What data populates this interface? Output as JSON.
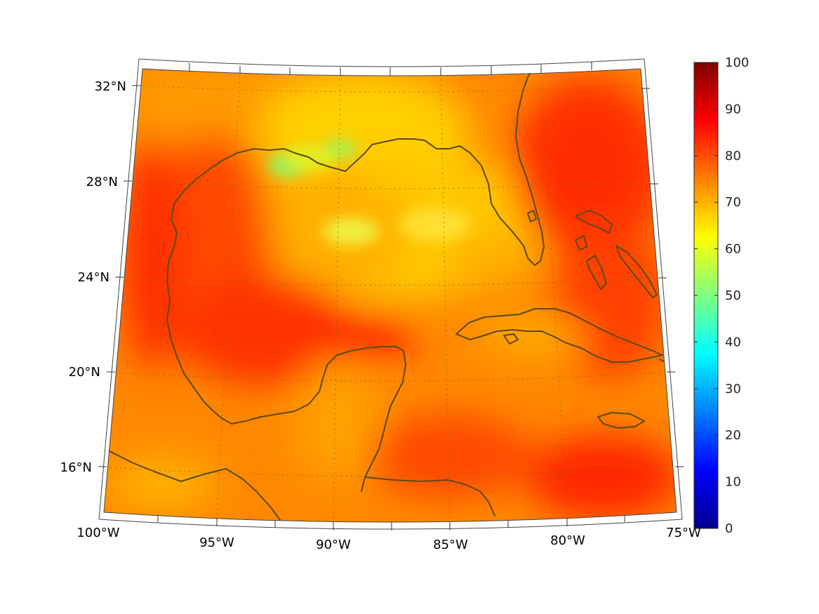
{
  "map": {
    "projection": "conic",
    "region": "Gulf of Mexico and Caribbean",
    "lon_range": [
      -100,
      -75
    ],
    "lat_range": [
      14,
      33
    ],
    "lon_ticks": [
      {
        "value": -100,
        "label": "100°W"
      },
      {
        "value": -95,
        "label": "95°W"
      },
      {
        "value": -90,
        "label": "90°W"
      },
      {
        "value": -85,
        "label": "85°W"
      },
      {
        "value": -80,
        "label": "80°W"
      },
      {
        "value": -75,
        "label": "75°W"
      }
    ],
    "lat_ticks": [
      {
        "value": 32,
        "label": "32°N"
      },
      {
        "value": 28,
        "label": "28°N"
      },
      {
        "value": 24,
        "label": "24°N"
      },
      {
        "value": 20,
        "label": "20°N"
      },
      {
        "value": 16,
        "label": "16°N"
      }
    ],
    "graticule": "dotted",
    "coastline_color": "#5a4a1a"
  },
  "colorbar": {
    "colormap": "jet",
    "min": 0,
    "max": 100,
    "ticks": [
      "0",
      "10",
      "20",
      "30",
      "40",
      "50",
      "60",
      "70",
      "80",
      "90",
      "100"
    ]
  },
  "field": {
    "dominant_values": "65-90",
    "low_values_near": "Louisiana coast (~50-55)",
    "high_values_near": "western Gulf, Bay of Campeche, Atlantic off Florida (~85-90)"
  }
}
